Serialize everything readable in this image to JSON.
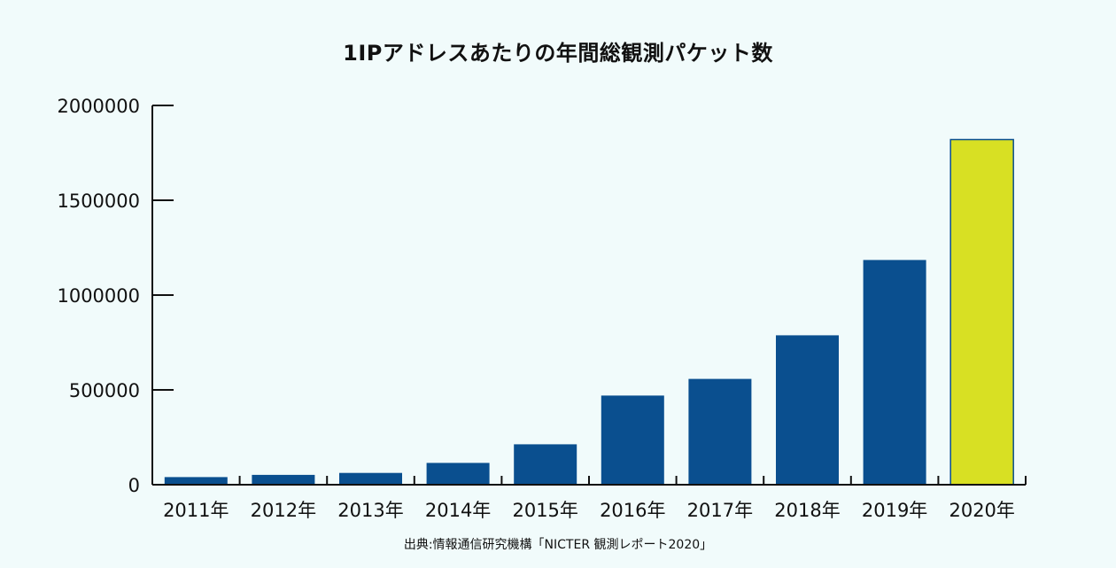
{
  "chart_data": {
    "type": "bar",
    "title": "1IPアドレスあたりの年間総観測パケット数",
    "xlabel": "",
    "ylabel": "",
    "categories": [
      "2011年",
      "2012年",
      "2013年",
      "2014年",
      "2015年",
      "2016年",
      "2017年",
      "2018年",
      "2019年",
      "2020年"
    ],
    "values": [
      40000,
      52000,
      62000,
      115000,
      213000,
      470000,
      558000,
      788000,
      1185000,
      1820000
    ],
    "ylim": [
      0,
      2000000
    ],
    "yticks": [
      "0",
      "500000",
      "1000000",
      "1500000",
      "2000000"
    ],
    "ytick_values": [
      0,
      500000,
      1000000,
      1500000,
      2000000
    ],
    "grid": false,
    "colors": {
      "bar": "#0a4f8f",
      "highlight": "#d8e023",
      "highlight_border": "#0a4f8f",
      "axis": "#111111",
      "background": "#f1fbfb"
    },
    "highlight_index": 9,
    "source": "出典:情報通信研究機構「NICTER 観測レポート2020」"
  }
}
